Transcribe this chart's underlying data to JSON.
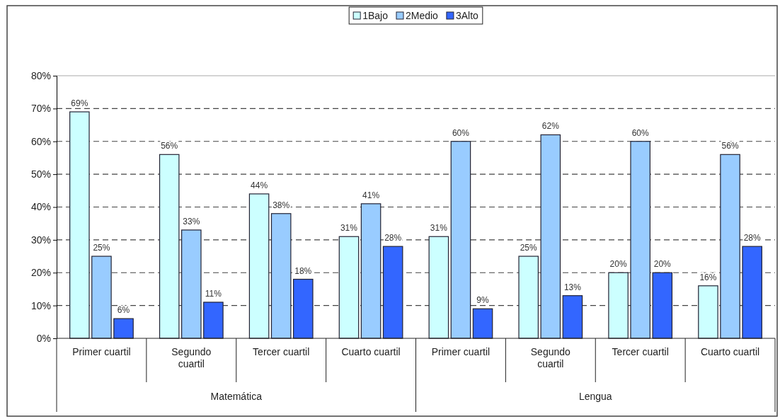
{
  "chart_data": {
    "type": "bar",
    "categories": [
      "Primer cuartil",
      "Segundo cuartil",
      "Tercer cuartil",
      "Cuarto cuartil",
      "Primer cuartil",
      "Segundo cuartil",
      "Tercer cuartil",
      "Cuarto cuartil"
    ],
    "series": [
      {
        "name": "1Bajo",
        "color": "#ccffff",
        "values": [
          69,
          56,
          44,
          31,
          31,
          25,
          20,
          16
        ],
        "value_labels": [
          "69%",
          "56%",
          "44%",
          "31%",
          "31%",
          "25%",
          "20%",
          "16%"
        ]
      },
      {
        "name": "2Medio",
        "color": "#99ccff",
        "values": [
          25,
          33,
          38,
          41,
          60,
          62,
          60,
          56
        ],
        "value_labels": [
          "25%",
          "33%",
          "38%",
          "41%",
          "60%",
          "62%",
          "60%",
          "56%"
        ]
      },
      {
        "name": "3Alto",
        "color": "#3366ff",
        "values": [
          6,
          11,
          18,
          28,
          9,
          13,
          20,
          28
        ],
        "value_labels": [
          "6%",
          "11%",
          "18%",
          "28%",
          "9%",
          "13%",
          "20%",
          "28%"
        ]
      }
    ],
    "ylim": [
      0,
      80
    ],
    "yticks": [
      {
        "value": 0,
        "label": "0%"
      },
      {
        "value": 10,
        "label": "10%"
      },
      {
        "value": 20,
        "label": "20%"
      },
      {
        "value": 30,
        "label": "30%"
      },
      {
        "value": 40,
        "label": "40%"
      },
      {
        "value": 50,
        "label": "50%"
      },
      {
        "value": 60,
        "label": "60%"
      },
      {
        "value": 70,
        "label": "70%"
      },
      {
        "value": 80,
        "label": "80%"
      }
    ],
    "annotations": [
      "Matemática",
      "Lengua"
    ],
    "grid": "y",
    "legend": "top"
  }
}
